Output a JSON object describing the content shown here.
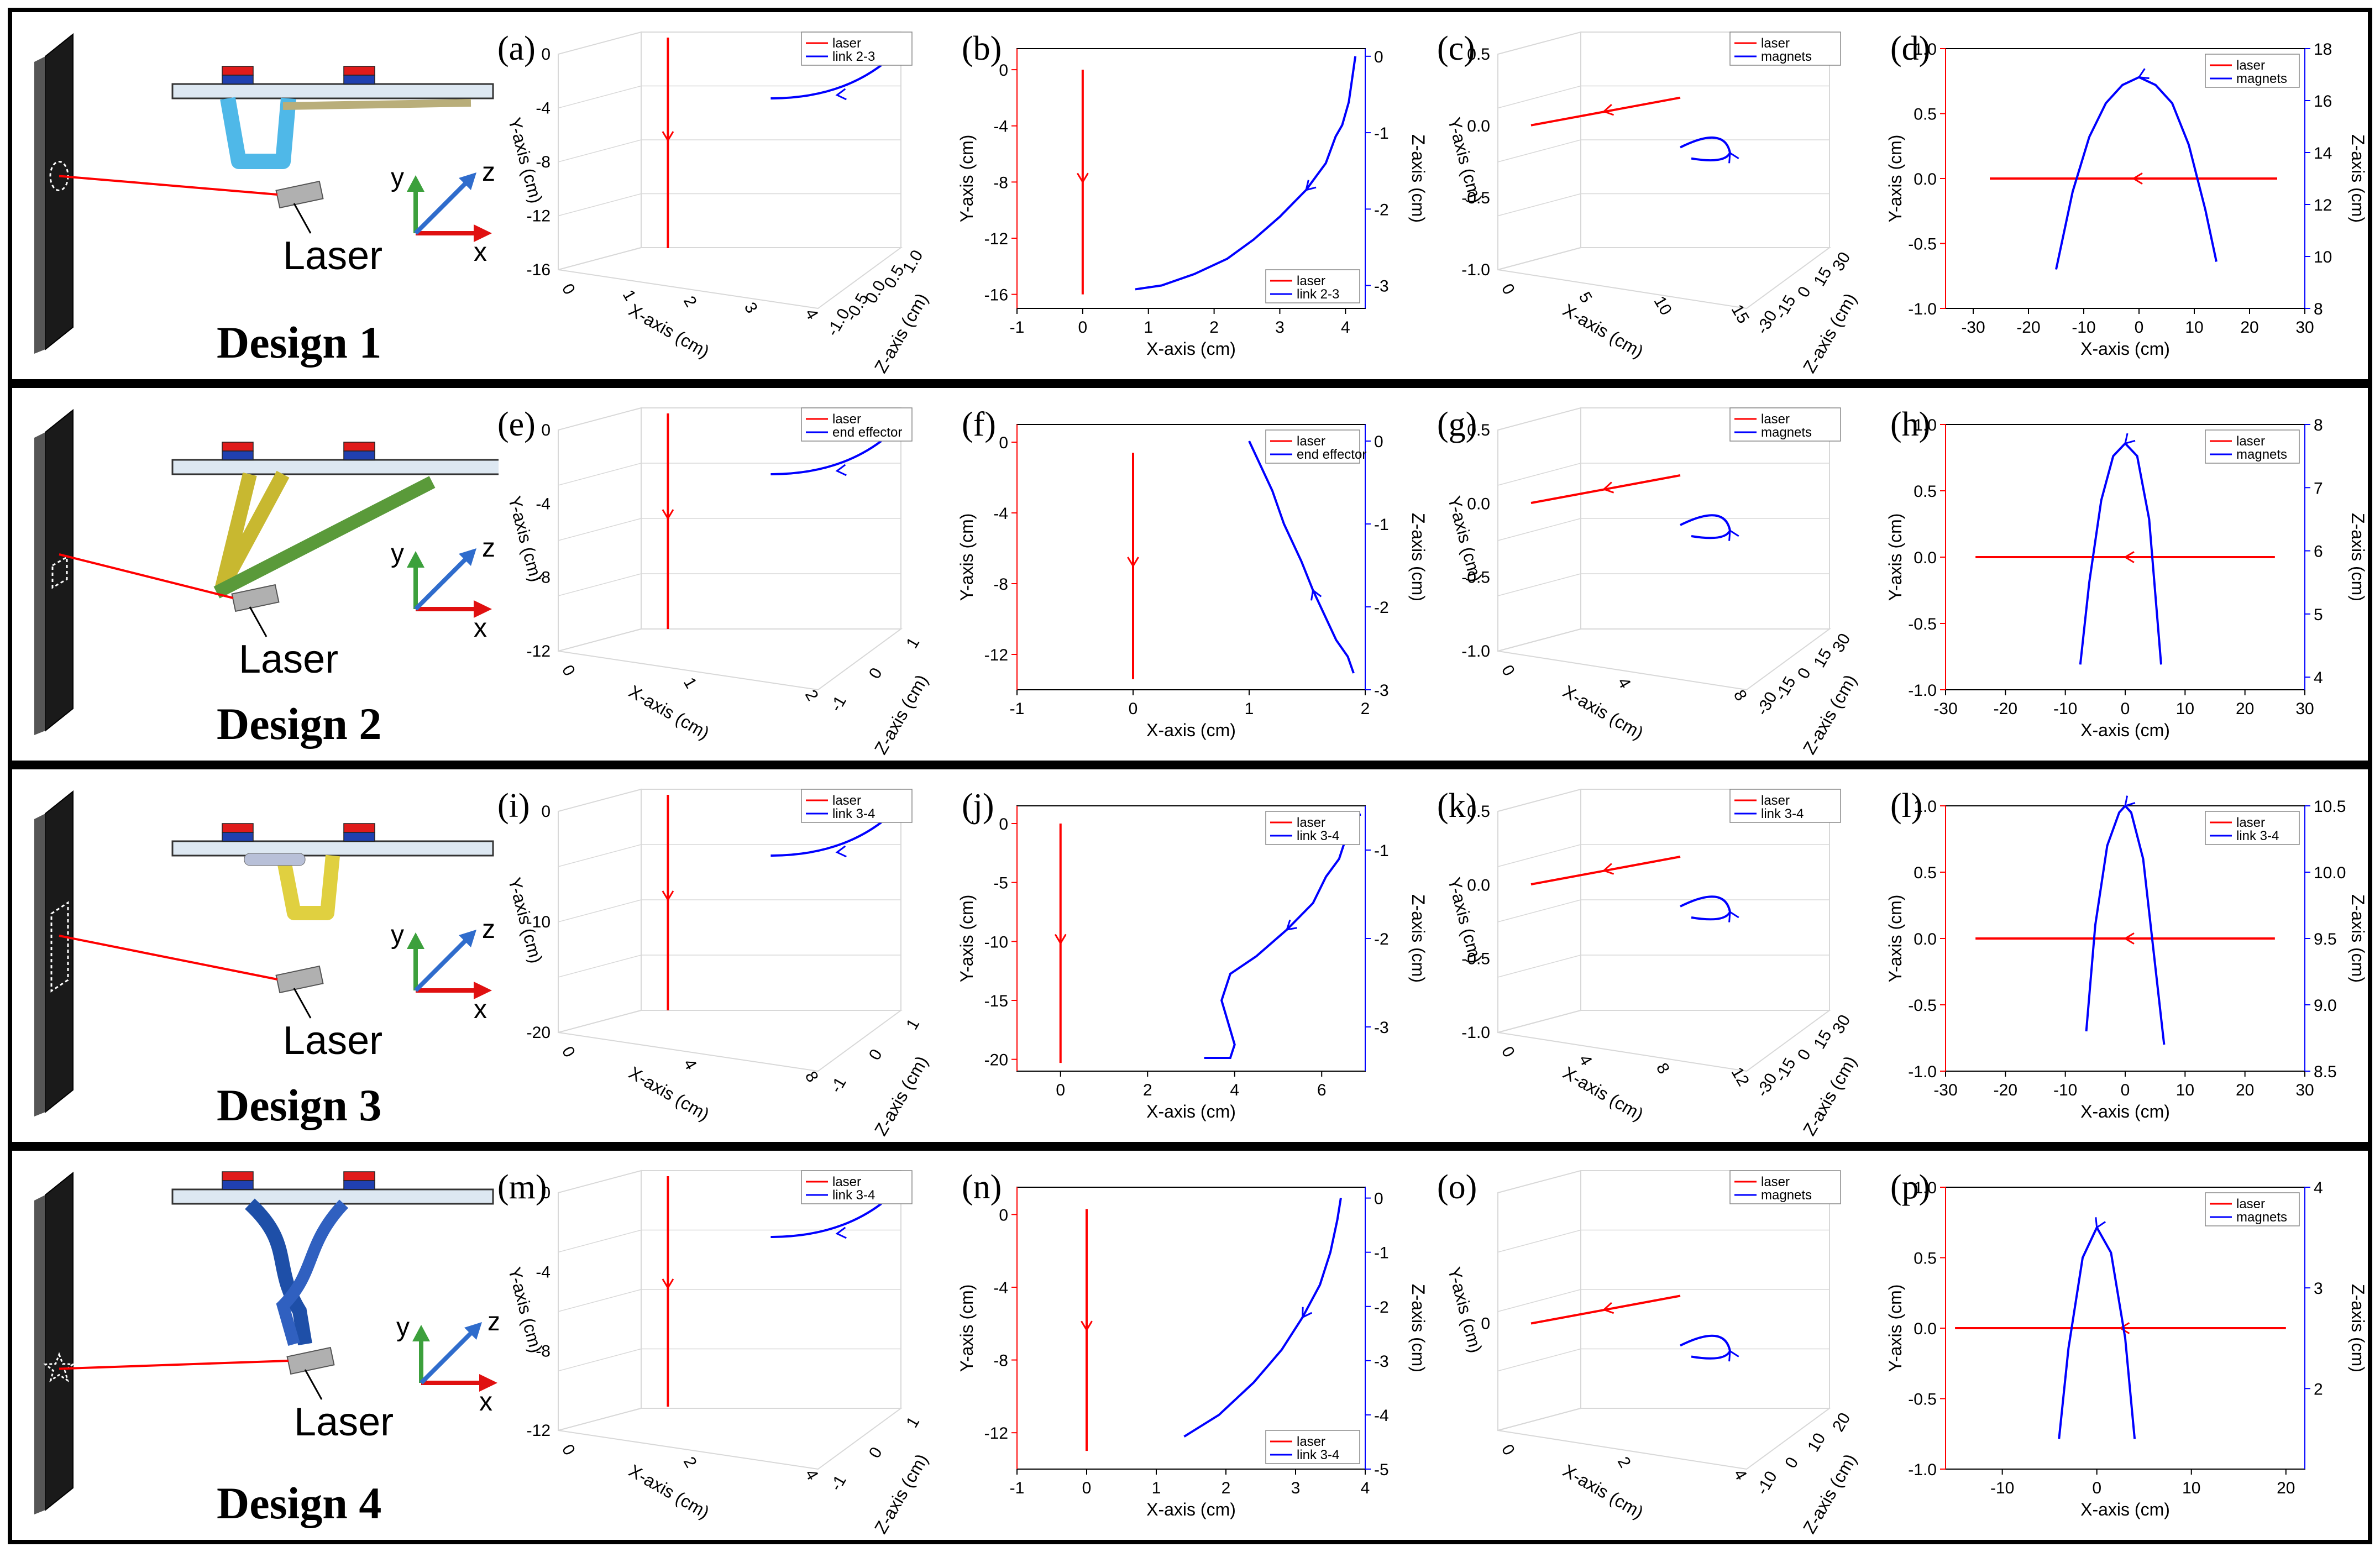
{
  "colors": {
    "laser": "#ff0000",
    "link": "#0000ff",
    "frame": "#000000",
    "grid": "#d8d8d8"
  },
  "rows": [
    {
      "design": "Design 1",
      "laser_label": "Laser",
      "axes": {
        "y": "y",
        "z": "z",
        "x": "x"
      },
      "target_shape": "ellipse",
      "link_color": "#4fb8e8",
      "mech_type": "u"
    },
    {
      "design": "Design 2",
      "laser_label": "Laser",
      "axes": {
        "y": "y",
        "z": "z",
        "x": "x"
      },
      "target_shape": "parallelogram",
      "link_color": "#c8b830",
      "mech_type": "triangle"
    },
    {
      "design": "Design 3",
      "laser_label": "Laser",
      "axes": {
        "y": "y",
        "z": "z",
        "x": "x"
      },
      "target_shape": "tall-parallelogram",
      "link_color": "#e0d040",
      "mech_type": "u-narrow"
    },
    {
      "design": "Design 4",
      "laser_label": "Laser",
      "axes": {
        "y": "y",
        "z": "z",
        "x": "x"
      },
      "target_shape": "star",
      "link_color": "#1e4fa8",
      "mech_type": "twisted"
    }
  ],
  "chart_data": [
    {
      "panel": "(a)",
      "type": "line",
      "projection": "3d",
      "series": [
        {
          "name": "laser"
        },
        {
          "name": "link 2-3"
        }
      ],
      "ylabel": "Y-axis (cm)",
      "xlabel": "X-axis (cm)",
      "zlabel": "Z-axis (cm)",
      "y_ticks": [
        "0",
        "-4",
        "-8",
        "-12",
        "-16"
      ],
      "x_ticks": [
        "0",
        "1",
        "2",
        "3",
        "4"
      ],
      "z_ticks": [
        "1.0",
        "0.5",
        "0.0",
        "-0.5",
        "-1.0"
      ]
    },
    {
      "panel": "(b)",
      "type": "line",
      "projection": "2d-dual",
      "series": [
        {
          "name": "laser",
          "axis": "left",
          "x": [
            0,
            0
          ],
          "y": [
            -16,
            0
          ]
        },
        {
          "name": "link 2-3",
          "axis": "right",
          "x": [
            0.8,
            1.2,
            1.7,
            2.2,
            2.6,
            3.0,
            3.4,
            3.7,
            3.85,
            3.95,
            4.05,
            4.15
          ],
          "y": [
            -3.05,
            -3.0,
            -2.85,
            -2.65,
            -2.4,
            -2.1,
            -1.75,
            -1.4,
            -1.05,
            -0.9,
            -0.6,
            0.0
          ]
        }
      ],
      "xlim": [
        -1,
        4.3
      ],
      "ylim": [
        -17,
        1.5
      ],
      "y2lim": [
        -3.3,
        0.1
      ],
      "x_ticks": [
        "-1",
        "0",
        "1",
        "2",
        "3",
        "4"
      ],
      "y_ticks": [
        "0",
        "-4",
        "-8",
        "-12",
        "-16"
      ],
      "y2_ticks": [
        "0",
        "-1",
        "-2",
        "-3"
      ],
      "xlabel": "X-axis (cm)",
      "ylabel": "Y-axis (cm)",
      "y2label": "Z-axis (cm)",
      "legend": "bottom-right"
    },
    {
      "panel": "(c)",
      "type": "line",
      "projection": "3d",
      "series": [
        {
          "name": "laser"
        },
        {
          "name": "magnets"
        }
      ],
      "ylabel": "Y-axis (cm)",
      "xlabel": "X-axis (cm)",
      "zlabel": "Z-axis (cm)",
      "y_ticks": [
        "0.5",
        "0.0",
        "-0.5",
        "-1.0"
      ],
      "x_ticks": [
        "0",
        "5",
        "10",
        "15"
      ],
      "z_ticks": [
        "30",
        "15",
        "0",
        "-15",
        "-30"
      ]
    },
    {
      "panel": "(d)",
      "type": "line",
      "projection": "2d-dual",
      "series": [
        {
          "name": "laser",
          "axis": "left",
          "x": [
            -27,
            25
          ],
          "y": [
            0,
            0
          ]
        },
        {
          "name": "magnets",
          "axis": "right",
          "x": [
            -15,
            -12,
            -9,
            -6,
            -3,
            0,
            3,
            6,
            9,
            12,
            14
          ],
          "y": [
            9.5,
            12.5,
            14.6,
            15.9,
            16.6,
            16.9,
            16.6,
            15.9,
            14.3,
            11.8,
            9.8
          ]
        }
      ],
      "xlim": [
        -35,
        30
      ],
      "ylim": [
        -1,
        1
      ],
      "y2lim": [
        8,
        18
      ],
      "x_ticks": [
        "-30",
        "-20",
        "-10",
        "0",
        "10",
        "20",
        "30"
      ],
      "y_ticks": [
        "1.0",
        "0.5",
        "0.0",
        "-0.5",
        "-1.0"
      ],
      "y2_ticks": [
        "8",
        "10",
        "12",
        "14",
        "16",
        "18"
      ],
      "xlabel": "X-axis (cm)",
      "ylabel": "Y-axis (cm)",
      "y2label": "Z-axis (cm)",
      "legend": "top-right"
    },
    {
      "panel": "(e)",
      "type": "line",
      "projection": "3d",
      "series": [
        {
          "name": "laser"
        },
        {
          "name": "end effector"
        }
      ],
      "ylabel": "Y-axis (cm)",
      "xlabel": "X-axis (cm)",
      "zlabel": "Z-axis (cm)",
      "y_ticks": [
        "0",
        "-4",
        "-8",
        "-12"
      ],
      "x_ticks": [
        "0",
        "1",
        "2"
      ],
      "z_ticks": [
        "1",
        "0",
        "-1"
      ]
    },
    {
      "panel": "(f)",
      "type": "line",
      "projection": "2d-dual",
      "series": [
        {
          "name": "laser",
          "axis": "left",
          "x": [
            0,
            0
          ],
          "y": [
            -13.4,
            -0.6
          ]
        },
        {
          "name": "end effector",
          "axis": "right",
          "x": [
            1.0,
            1.1,
            1.2,
            1.3,
            1.45,
            1.55,
            1.65,
            1.75,
            1.85,
            1.9
          ],
          "y": [
            0.0,
            -0.3,
            -0.6,
            -1.0,
            -1.45,
            -1.8,
            -2.1,
            -2.4,
            -2.6,
            -2.8
          ]
        }
      ],
      "xlim": [
        -1,
        2
      ],
      "ylim": [
        -14,
        1
      ],
      "y2lim": [
        -3,
        0.2
      ],
      "x_ticks": [
        "-1",
        "0",
        "1",
        "2"
      ],
      "y_ticks": [
        "0",
        "-4",
        "-8",
        "-12"
      ],
      "y2_ticks": [
        "0",
        "-1",
        "-2",
        "-3"
      ],
      "xlabel": "X-axis (cm)",
      "ylabel": "Y-axis (cm)",
      "y2label": "Z-axis (cm)",
      "legend": "top-right"
    },
    {
      "panel": "(g)",
      "type": "line",
      "projection": "3d",
      "series": [
        {
          "name": "laser"
        },
        {
          "name": "magnets"
        }
      ],
      "ylabel": "Y-axis (cm)",
      "xlabel": "X-axis (cm)",
      "zlabel": "Z-axis (cm)",
      "y_ticks": [
        "0.5",
        "0.0",
        "-0.5",
        "-1.0"
      ],
      "x_ticks": [
        "0",
        "4",
        "8"
      ],
      "z_ticks": [
        "30",
        "15",
        "0",
        "-15",
        "-30"
      ]
    },
    {
      "panel": "(h)",
      "type": "line",
      "projection": "2d-dual",
      "series": [
        {
          "name": "laser",
          "axis": "left",
          "x": [
            -25,
            25
          ],
          "y": [
            0,
            0
          ]
        },
        {
          "name": "magnets",
          "axis": "right",
          "x": [
            -7.5,
            -6,
            -4,
            -2,
            0,
            2,
            4,
            6
          ],
          "y": [
            4.2,
            5.5,
            6.8,
            7.5,
            7.7,
            7.5,
            6.5,
            4.2
          ]
        }
      ],
      "xlim": [
        -30,
        30
      ],
      "ylim": [
        -1,
        1
      ],
      "y2lim": [
        3.8,
        8
      ],
      "x_ticks": [
        "-30",
        "-20",
        "-10",
        "0",
        "10",
        "20",
        "30"
      ],
      "y_ticks": [
        "1.0",
        "0.5",
        "0.0",
        "-0.5",
        "-1.0"
      ],
      "y2_ticks": [
        "4",
        "5",
        "6",
        "7",
        "8"
      ],
      "xlabel": "X-axis (cm)",
      "ylabel": "Y-axis (cm)",
      "y2label": "Z-axis (cm)",
      "legend": "top-right"
    },
    {
      "panel": "(i)",
      "type": "line",
      "projection": "3d",
      "series": [
        {
          "name": "laser"
        },
        {
          "name": "link 3-4"
        }
      ],
      "ylabel": "Y-axis (cm)",
      "xlabel": "X-axis (cm)",
      "zlabel": "Z-axis (cm)",
      "y_ticks": [
        "0",
        "-10",
        "-20"
      ],
      "x_ticks": [
        "0",
        "4",
        "8"
      ],
      "z_ticks": [
        "1",
        "0",
        "-1"
      ]
    },
    {
      "panel": "(j)",
      "type": "line",
      "projection": "2d-dual",
      "series": [
        {
          "name": "laser",
          "axis": "left",
          "x": [
            0,
            0
          ],
          "y": [
            -20.3,
            0
          ]
        },
        {
          "name": "link 3-4",
          "axis": "right",
          "x": [
            3.3,
            3.9,
            4.0,
            3.7,
            3.9,
            4.5,
            5.2,
            5.8,
            6.1,
            6.4,
            6.6,
            6.7,
            6.9
          ],
          "y": [
            -3.35,
            -3.35,
            -3.2,
            -2.7,
            -2.4,
            -2.2,
            -1.9,
            -1.6,
            -1.3,
            -1.1,
            -0.8,
            -0.6,
            -0.6
          ]
        }
      ],
      "xlim": [
        -1,
        7
      ],
      "ylim": [
        -21,
        1.5
      ],
      "y2lim": [
        -3.5,
        -0.5
      ],
      "x_ticks": [
        "0",
        "2",
        "4",
        "6"
      ],
      "y_ticks": [
        "0",
        "-5",
        "-10",
        "-15",
        "-20"
      ],
      "y2_ticks": [
        "-1",
        "-2",
        "-3"
      ],
      "xlabel": "X-axis (cm)",
      "ylabel": "Y-axis (cm)",
      "y2label": "Z-axis (cm)",
      "legend": "top-right"
    },
    {
      "panel": "(k)",
      "type": "line",
      "projection": "3d",
      "series": [
        {
          "name": "laser"
        },
        {
          "name": "link 3-4"
        }
      ],
      "ylabel": "Y-axis (cm)",
      "xlabel": "X-axis (cm)",
      "zlabel": "Z-axis (cm)",
      "y_ticks": [
        "0.5",
        "0.0",
        "-0.5",
        "-1.0"
      ],
      "x_ticks": [
        "0",
        "4",
        "8",
        "12"
      ],
      "z_ticks": [
        "30",
        "15",
        "0",
        "-15",
        "-30"
      ]
    },
    {
      "panel": "(l)",
      "type": "line",
      "projection": "2d-dual",
      "series": [
        {
          "name": "laser",
          "axis": "left",
          "x": [
            -25,
            25
          ],
          "y": [
            0,
            0
          ]
        },
        {
          "name": "link 3-4",
          "axis": "right",
          "x": [
            -6.5,
            -5,
            -3,
            -1,
            0,
            1,
            3,
            5,
            6.5
          ],
          "y": [
            8.8,
            9.6,
            10.2,
            10.45,
            10.5,
            10.45,
            10.1,
            9.3,
            8.7
          ]
        }
      ],
      "xlim": [
        -30,
        30
      ],
      "ylim": [
        -1,
        1
      ],
      "y2lim": [
        8.5,
        10.5
      ],
      "x_ticks": [
        "-30",
        "-20",
        "-10",
        "0",
        "10",
        "20",
        "30"
      ],
      "y_ticks": [
        "1.0",
        "0.5",
        "0.0",
        "-0.5",
        "-1.0"
      ],
      "y2_ticks": [
        "8.5",
        "9.0",
        "9.5",
        "10.0",
        "10.5"
      ],
      "xlabel": "X-axis (cm)",
      "ylabel": "Y-axis (cm)",
      "y2label": "Z-axis (cm)",
      "legend": "top-right"
    },
    {
      "panel": "(m)",
      "type": "line",
      "projection": "3d",
      "series": [
        {
          "name": "laser"
        },
        {
          "name": "link 3-4"
        }
      ],
      "ylabel": "Y-axis (cm)",
      "xlabel": "X-axis (cm)",
      "zlabel": "Z-axis (cm)",
      "y_ticks": [
        "0",
        "-4",
        "-8",
        "-12"
      ],
      "x_ticks": [
        "0",
        "2",
        "4"
      ],
      "z_ticks": [
        "1",
        "0",
        "-1"
      ]
    },
    {
      "panel": "(n)",
      "type": "line",
      "projection": "2d-dual",
      "series": [
        {
          "name": "laser",
          "axis": "left",
          "x": [
            0,
            0
          ],
          "y": [
            -13,
            0.3
          ]
        },
        {
          "name": "link 3-4",
          "axis": "right",
          "x": [
            1.4,
            1.9,
            2.4,
            2.8,
            3.1,
            3.35,
            3.5,
            3.6,
            3.65
          ],
          "y": [
            -4.4,
            -4.0,
            -3.4,
            -2.8,
            -2.2,
            -1.6,
            -1.0,
            -0.4,
            0.0
          ]
        }
      ],
      "xlim": [
        -1,
        4
      ],
      "ylim": [
        -14,
        1.5
      ],
      "y2lim": [
        -5,
        0.2
      ],
      "x_ticks": [
        "-1",
        "0",
        "1",
        "2",
        "3",
        "4"
      ],
      "y_ticks": [
        "0",
        "-4",
        "-8",
        "-12"
      ],
      "y2_ticks": [
        "0",
        "-1",
        "-2",
        "-3",
        "-4",
        "-5"
      ],
      "xlabel": "X-axis (cm)",
      "ylabel": "Y-axis (cm)",
      "y2label": "Z-axis (cm)",
      "legend": "bottom-right"
    },
    {
      "panel": "(o)",
      "type": "line",
      "projection": "3d",
      "series": [
        {
          "name": "laser"
        },
        {
          "name": "magnets"
        }
      ],
      "ylabel": "Y-axis (cm)",
      "xlabel": "X-axis (cm)",
      "zlabel": "Z-axis (cm)",
      "y_ticks": [
        "0"
      ],
      "x_ticks": [
        "0",
        "2",
        "4"
      ],
      "z_ticks": [
        "20",
        "10",
        "0",
        "-10"
      ]
    },
    {
      "panel": "(p)",
      "type": "line",
      "projection": "2d-dual",
      "series": [
        {
          "name": "laser",
          "axis": "left",
          "x": [
            -15,
            20
          ],
          "y": [
            0,
            0
          ]
        },
        {
          "name": "magnets",
          "axis": "right",
          "x": [
            -4,
            -3,
            -1.5,
            0,
            1.5,
            3,
            4
          ],
          "y": [
            1.5,
            2.4,
            3.3,
            3.6,
            3.35,
            2.5,
            1.5
          ]
        }
      ],
      "xlim": [
        -16,
        22
      ],
      "ylim": [
        -1,
        1
      ],
      "y2lim": [
        1.2,
        4
      ],
      "x_ticks": [
        "-10",
        "0",
        "10",
        "20"
      ],
      "y_ticks": [
        "1.0",
        "0.5",
        "0.0",
        "-0.5",
        "-1.0"
      ],
      "y2_ticks": [
        "2",
        "3",
        "4"
      ],
      "xlabel": "X-axis (cm)",
      "ylabel": "Y-axis (cm)",
      "y2label": "Z-axis (cm)",
      "legend": "top-right"
    }
  ]
}
